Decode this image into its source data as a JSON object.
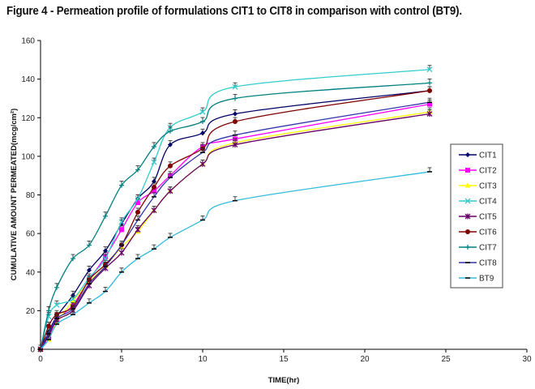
{
  "chart_data": {
    "type": "line",
    "title": "Figure 4 - Permeation profile of formulations CIT1 to CIT8 in comparison with control (BT9).",
    "xlabel": "TIME(hr)",
    "ylabel": "CUMULATIVE AMOUNT PERMEATED(mcg/cm²)",
    "xlim": [
      0,
      30
    ],
    "ylim": [
      0,
      160
    ],
    "xticks": [
      0,
      5,
      10,
      15,
      20,
      25,
      30
    ],
    "yticks": [
      0,
      20,
      40,
      60,
      80,
      100,
      120,
      140,
      160
    ],
    "grid": false,
    "legend_position": "right",
    "x": [
      0,
      0.5,
      1,
      2,
      3,
      4,
      5,
      6,
      7,
      8,
      10,
      12,
      24
    ],
    "series": [
      {
        "name": "CIT1",
        "color": "#000066",
        "marker": "diamond",
        "values": [
          0,
          9,
          17,
          28,
          41,
          51,
          65,
          78,
          87,
          106,
          112,
          122,
          134
        ]
      },
      {
        "name": "CIT2",
        "color": "#ff00ff",
        "marker": "square",
        "values": [
          0,
          6,
          15,
          23,
          36,
          48,
          62,
          76,
          82,
          90,
          105,
          109,
          127
        ]
      },
      {
        "name": "CIT3",
        "color": "#ffff00",
        "marker": "triangle",
        "values": [
          0,
          5,
          14,
          25,
          35,
          43,
          53,
          61,
          72,
          82,
          96,
          107,
          123
        ]
      },
      {
        "name": "CIT4",
        "color": "#33cccc",
        "marker": "x",
        "values": [
          0,
          17,
          23,
          26,
          37,
          47,
          66,
          78,
          97,
          115,
          123,
          136,
          145
        ]
      },
      {
        "name": "CIT5",
        "color": "#660066",
        "marker": "star",
        "values": [
          0,
          7,
          15,
          20,
          33,
          42,
          50,
          62,
          72,
          82,
          96,
          106,
          122
        ]
      },
      {
        "name": "CIT6",
        "color": "#800000",
        "marker": "circle",
        "values": [
          0,
          12,
          18,
          22,
          36,
          44,
          54,
          71,
          84,
          95,
          104,
          118,
          134
        ]
      },
      {
        "name": "CIT7",
        "color": "#008080",
        "marker": "plus",
        "values": [
          0,
          20,
          32,
          47,
          54,
          69,
          85,
          93,
          105,
          113,
          118,
          130,
          138
        ]
      },
      {
        "name": "CIT8",
        "color": "#3333aa",
        "marker": "dash",
        "values": [
          0,
          8,
          16,
          21,
          34,
          43,
          54,
          67,
          79,
          89,
          102,
          111,
          128
        ]
      },
      {
        "name": "BT9",
        "color": "#33bbdd",
        "marker": "dash",
        "values": [
          0,
          5,
          13,
          18,
          24,
          30,
          40,
          47,
          52,
          58,
          67,
          77,
          92
        ]
      }
    ]
  }
}
